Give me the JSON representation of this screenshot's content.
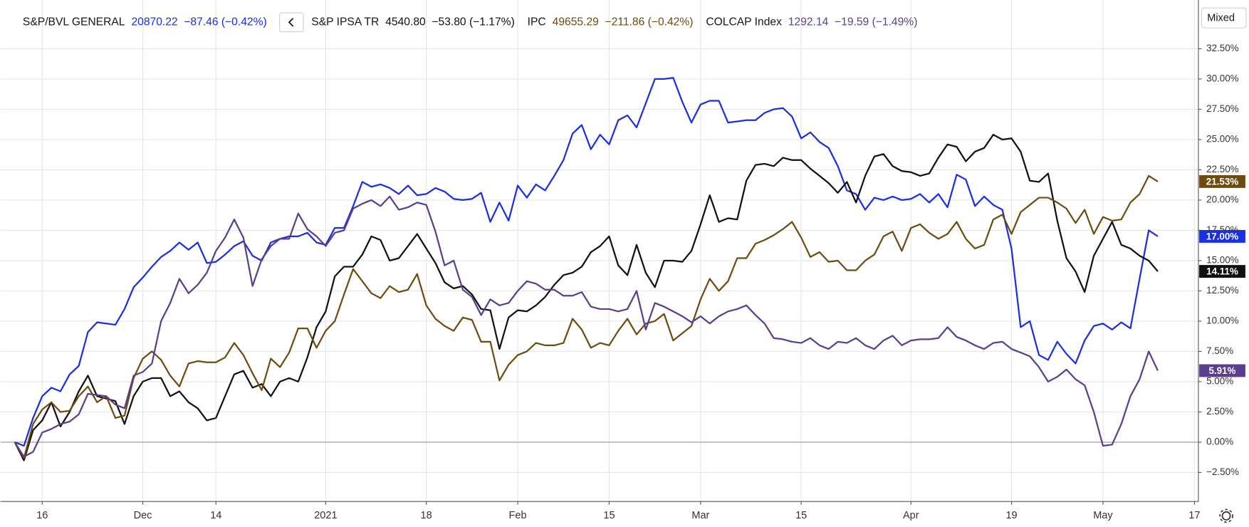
{
  "chart_data": {
    "type": "line",
    "ui": {
      "mode_button": "Mixed"
    },
    "categories": [
      null,
      null,
      null,
      "16",
      null,
      null,
      null,
      null,
      null,
      null,
      null,
      null,
      null,
      null,
      "Dec",
      null,
      null,
      null,
      null,
      null,
      null,
      null,
      "14",
      null,
      null,
      null,
      null,
      null,
      null,
      null,
      null,
      null,
      null,
      null,
      "2021",
      null,
      null,
      null,
      null,
      null,
      null,
      null,
      null,
      null,
      null,
      "18",
      null,
      null,
      null,
      null,
      null,
      null,
      null,
      null,
      null,
      "Feb",
      null,
      null,
      null,
      null,
      null,
      null,
      null,
      null,
      null,
      "15",
      null,
      null,
      null,
      null,
      null,
      null,
      null,
      null,
      null,
      "Mar",
      null,
      null,
      null,
      null,
      null,
      null,
      null,
      null,
      null,
      null,
      "15",
      null,
      null,
      null,
      null,
      null,
      null,
      null,
      null,
      null,
      null,
      null,
      "Apr",
      null,
      null,
      null,
      null,
      null,
      null,
      null,
      null,
      null,
      null,
      "19",
      null,
      null,
      null,
      null,
      null,
      null,
      null,
      null,
      null,
      "May",
      null,
      null,
      null,
      null,
      null,
      null,
      null,
      null,
      null,
      "17"
    ],
    "ylim": [
      -4.9,
      36
    ],
    "yticks": [
      {
        "value": -2.5,
        "label": "−2.50%"
      },
      {
        "value": 0,
        "label": "0.00%"
      },
      {
        "value": 2.5,
        "label": "2.50%"
      },
      {
        "value": 5,
        "label": "5.00%"
      },
      {
        "value": 7.5,
        "label": "7.50%"
      },
      {
        "value": 10,
        "label": "10.00%"
      },
      {
        "value": 12.5,
        "label": "12.50%"
      },
      {
        "value": 15,
        "label": "15.00%"
      },
      {
        "value": 17.5,
        "label": "17.50%"
      },
      {
        "value": 20,
        "label": "20.00%"
      },
      {
        "value": 22.5,
        "label": "22.50%"
      },
      {
        "value": 25,
        "label": "25.00%"
      },
      {
        "value": 27.5,
        "label": "27.50%"
      },
      {
        "value": 30,
        "label": "30.00%"
      },
      {
        "value": 32.5,
        "label": "32.50%"
      }
    ],
    "grid": true,
    "series": [
      {
        "name": "S&P/BVL GENERAL",
        "quote": "20870.22  −87.46 (−0.42%)",
        "last_label": "17.00%",
        "color": "#1c2fe0",
        "values": [
          0,
          -0.3,
          2,
          3.8,
          4.5,
          4.2,
          5.6,
          6.3,
          9.1,
          9.9,
          9.8,
          9.7,
          11,
          12.8,
          13.6,
          14.5,
          15.3,
          15.8,
          16.5,
          15.9,
          16.5,
          14.8,
          14.9,
          15.5,
          16.2,
          16.6,
          15.4,
          15,
          16.5,
          16.8,
          17,
          17,
          17.3,
          16.5,
          16.3,
          17.7,
          17.7,
          19.5,
          21.5,
          21.1,
          21.3,
          21,
          20.5,
          21.2,
          20.4,
          20.5,
          21,
          20.7,
          20.1,
          20,
          20.1,
          20.6,
          18.2,
          19.8,
          18.3,
          21.2,
          20.2,
          21.3,
          20.8,
          22,
          23.3,
          25.5,
          26.2,
          24.2,
          25.4,
          24.6,
          26.6,
          27,
          26,
          28,
          30,
          30,
          30.1,
          28.1,
          26.4,
          27.9,
          28.2,
          28.2,
          26.4,
          26.5,
          26.6,
          26.6,
          27.2,
          27.5,
          27.6,
          26.9,
          25.1,
          25.6,
          24.8,
          24.3,
          22.8,
          20.8,
          20.5,
          19.2,
          20.2,
          20,
          20.3,
          20,
          20.1,
          20.5,
          19.8,
          20.5,
          19.4,
          22.1,
          21.7,
          19.5,
          20.3,
          19.6,
          19.2,
          16,
          9.5,
          10,
          7.2,
          6.8,
          8.3,
          7.3,
          6.5,
          8.4,
          9.6,
          9.8,
          9.3,
          9.9,
          9.4,
          13.5,
          17.5,
          17.0,
          null,
          null,
          null,
          null
        ]
      },
      {
        "name": "S&P IPSA TR",
        "quote": "4540.80  −53.80 (−1.17%)",
        "last_label": "14.11%",
        "color": "#111111",
        "values": [
          0,
          -1.5,
          1,
          1.8,
          3.3,
          1.3,
          2.5,
          4.2,
          5.5,
          3.8,
          3.6,
          3.4,
          1.5,
          3.8,
          5,
          5.3,
          5.3,
          3.8,
          4.2,
          3.3,
          2.8,
          1.8,
          2,
          3.8,
          5.6,
          5.9,
          4.5,
          4.8,
          3.8,
          5,
          5.3,
          5,
          7,
          9.5,
          10.8,
          13.7,
          14.5,
          14.5,
          15.5,
          17,
          16.7,
          15,
          15.2,
          16.2,
          17.2,
          16,
          14.8,
          13.2,
          12.7,
          12.9,
          12.2,
          11,
          10.9,
          7.7,
          10.3,
          10.9,
          10.8,
          11.3,
          12,
          13,
          13.8,
          14,
          14.5,
          15.7,
          16.2,
          17,
          14.6,
          13.8,
          16.3,
          14,
          12.8,
          15,
          15,
          14.9,
          15.8,
          18,
          20.4,
          18.2,
          18.5,
          18.4,
          21.6,
          22.9,
          23,
          22.8,
          23.5,
          23.3,
          23.3,
          22.6,
          22,
          21.4,
          20.6,
          21.5,
          19.8,
          22,
          23.6,
          23.8,
          22.8,
          22.4,
          22.3,
          22,
          22.2,
          23.5,
          24.6,
          24.4,
          23.2,
          24,
          24.3,
          25.4,
          25,
          25.1,
          24,
          21.6,
          21.5,
          22.2,
          18.3,
          15.2,
          14.1,
          12.4,
          15.4,
          16.8,
          18.2,
          16.3,
          16,
          15.4,
          15,
          14.11,
          null,
          null,
          null,
          null
        ]
      },
      {
        "name": "IPC",
        "quote": "49655.29  −211.86 (−0.42%)",
        "last_label": "21.53%",
        "color": "#6e4c0f",
        "values": [
          0,
          -1.3,
          1.5,
          2.7,
          3.3,
          2.5,
          2.6,
          3.8,
          4.6,
          3.3,
          3.8,
          2,
          2.2,
          5.3,
          6.9,
          7.5,
          6.8,
          5.5,
          4.6,
          6.5,
          6.7,
          6.6,
          6.6,
          7,
          8.2,
          7.2,
          5.7,
          4.3,
          6.9,
          6.2,
          7.4,
          9.4,
          9.4,
          7.8,
          9.2,
          10,
          12.2,
          14.3,
          13.3,
          12.3,
          11.9,
          12.9,
          12.4,
          12.6,
          13.9,
          11.3,
          10.2,
          9.6,
          9.2,
          10.3,
          10.1,
          8.3,
          8.3,
          5.1,
          6.4,
          7.2,
          7.5,
          8.2,
          8,
          8,
          8.2,
          10.2,
          9.3,
          7.8,
          8.2,
          8,
          9.2,
          10.2,
          8.9,
          9.8,
          10,
          10.6,
          8.4,
          9,
          9.6,
          11.8,
          13.5,
          12.5,
          13.3,
          15.2,
          15.2,
          16.4,
          16.7,
          17.1,
          17.6,
          18.2,
          16.9,
          15.3,
          15.7,
          14.9,
          15,
          14.2,
          14.2,
          15,
          15.5,
          17,
          17.4,
          15.8,
          17.7,
          18,
          17.3,
          16.8,
          17.2,
          18.2,
          16.8,
          16,
          16.3,
          18.4,
          18.8,
          17.2,
          19,
          19.6,
          20.2,
          20.2,
          19.8,
          19.3,
          18.1,
          19.2,
          17.2,
          18.6,
          18.3,
          18.4,
          19.8,
          20.5,
          22,
          21.53,
          null,
          null,
          null,
          null
        ]
      },
      {
        "name": "COLCAP Index",
        "quote": "1292.14  −19.59 (−1.49%)",
        "last_label": "5.91%",
        "color": "#5b3f8e",
        "values": [
          0,
          -1.2,
          -0.8,
          0.8,
          1.1,
          1.5,
          1.7,
          2.3,
          4,
          3.9,
          3.8,
          3.1,
          2.8,
          5.5,
          5.8,
          6.5,
          10,
          11.5,
          13.5,
          12.3,
          13,
          14,
          15.8,
          16.9,
          18.4,
          16.9,
          12.9,
          15.1,
          16.2,
          16.8,
          16.8,
          18.9,
          17.6,
          17,
          16.2,
          17.3,
          17.5,
          19.3,
          19.7,
          20,
          19.5,
          20.3,
          19.2,
          19.4,
          19.8,
          19.6,
          17.4,
          14.6,
          15,
          12.6,
          12,
          10.5,
          11.8,
          11.3,
          11.5,
          12.5,
          13.3,
          13.1,
          12.6,
          12.6,
          12.1,
          12.1,
          12.4,
          11.2,
          11,
          11,
          10.8,
          11,
          12.5,
          9.3,
          11.5,
          11.2,
          10.8,
          10.4,
          9.9,
          10.4,
          9.8,
          10.4,
          10.8,
          11,
          11.3,
          10.5,
          9.8,
          8.6,
          8.5,
          8.3,
          8.2,
          8.6,
          8,
          7.7,
          8.3,
          8.2,
          8.6,
          8,
          7.7,
          8.4,
          8.8,
          8,
          8.4,
          8.5,
          8.5,
          8.6,
          9.5,
          8.7,
          8.4,
          8,
          7.7,
          8.2,
          8.3,
          7.7,
          7.4,
          7.1,
          6.2,
          5,
          5.4,
          6,
          5.2,
          4.7,
          2.5,
          -0.3,
          -0.2,
          1.5,
          3.8,
          5.2,
          7.5,
          5.91,
          null,
          null,
          null,
          null
        ]
      }
    ]
  }
}
